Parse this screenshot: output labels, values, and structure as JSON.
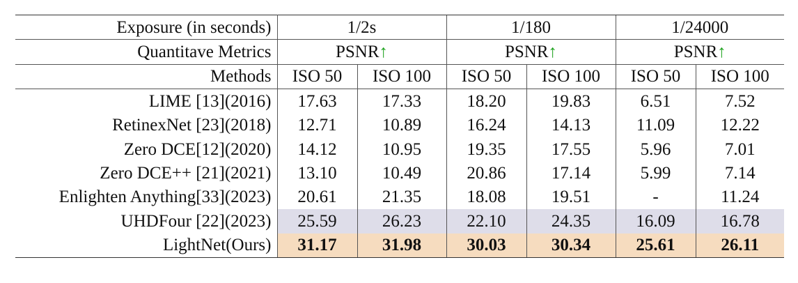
{
  "table": {
    "header": {
      "exposure_label": "Exposure (in seconds)",
      "exposures": [
        "1/2s",
        "1/180",
        "1/24000"
      ],
      "metrics_label": "Quantitave Metrics",
      "metric": "PSNR",
      "metric_arrow": "↑",
      "methods_label": "Methods",
      "iso_labels": [
        "ISO 50",
        "ISO 100",
        "ISO 50",
        "ISO 100",
        "ISO 50",
        "ISO 100"
      ]
    },
    "rows": [
      {
        "method": "LIME [13](2016)",
        "values": [
          "17.63",
          "17.33",
          "18.20",
          "19.83",
          "6.51",
          "7.52"
        ]
      },
      {
        "method": "RetinexNet [23](2018)",
        "values": [
          "12.71",
          "10.89",
          "16.24",
          "14.13",
          "11.09",
          "12.22"
        ]
      },
      {
        "method": "Zero DCE[12](2020)",
        "values": [
          "14.12",
          "10.95",
          "19.35",
          "17.55",
          "5.96",
          "7.01"
        ]
      },
      {
        "method": "Zero DCE++ [21](2021)",
        "values": [
          "13.10",
          "10.49",
          "20.86",
          "17.14",
          "5.99",
          "7.14"
        ]
      },
      {
        "method": "Enlighten Anything[33](2023)",
        "values": [
          "20.61",
          "21.35",
          "18.08",
          "19.51",
          "-",
          "11.24"
        ]
      },
      {
        "method": "UHDFour [22](2023)",
        "values": [
          "25.59",
          "26.23",
          "22.10",
          "24.35",
          "16.09",
          "16.78"
        ],
        "highlight": "second"
      },
      {
        "method": "LightNet(Ours)",
        "values": [
          "31.17",
          "31.98",
          "30.03",
          "30.34",
          "25.61",
          "26.11"
        ],
        "highlight": "best"
      }
    ],
    "colors": {
      "second_best_bg": "#dedde9",
      "best_bg": "#f6dcbf",
      "arrow": "#1fa31f"
    }
  }
}
